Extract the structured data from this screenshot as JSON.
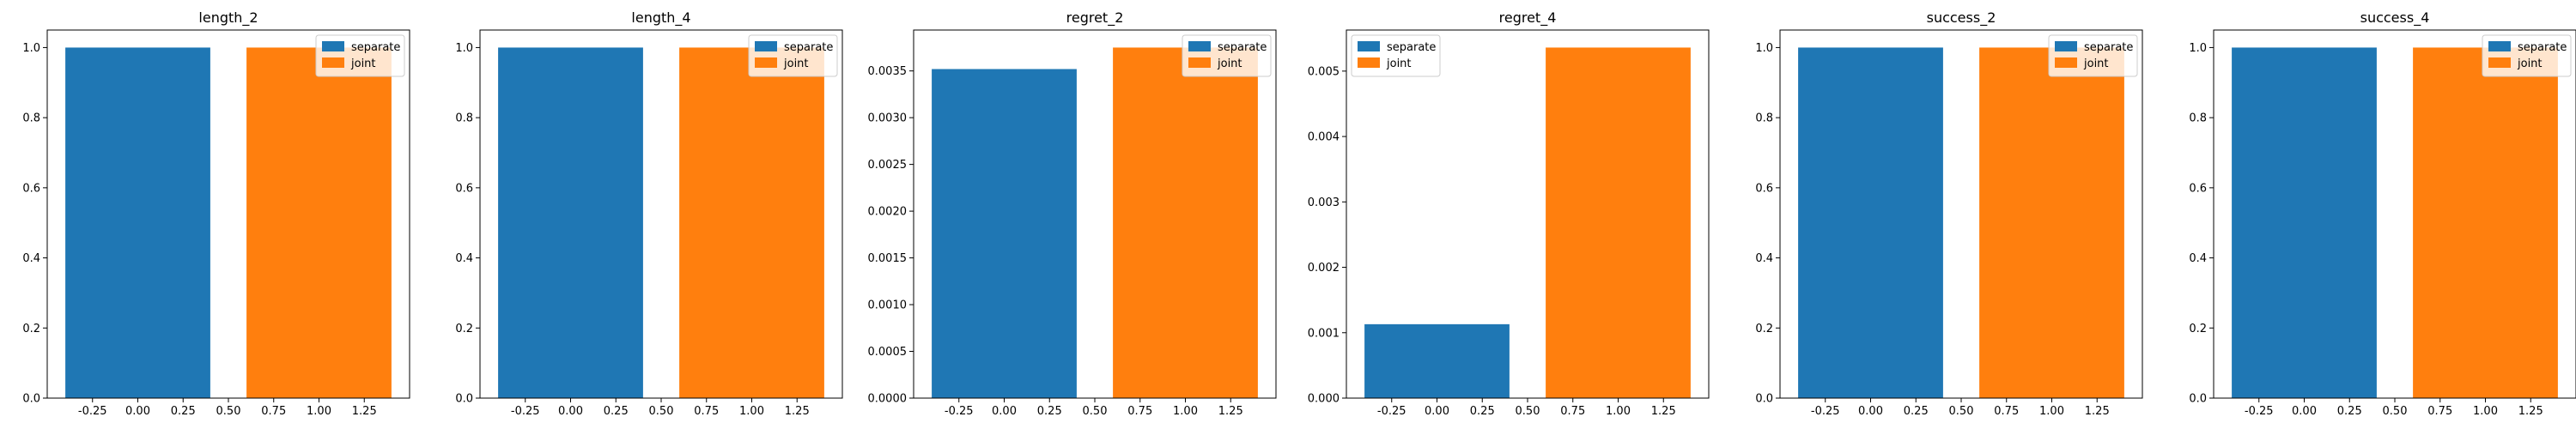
{
  "colors": {
    "separate": "#1f77b4",
    "joint": "#ff7f0e",
    "axis": "#000000"
  },
  "chart_data": [
    {
      "type": "bar",
      "title": "length_2",
      "categories": [
        0,
        1
      ],
      "series": [
        {
          "name": "separate",
          "x": 0,
          "value": 1.0
        },
        {
          "name": "joint",
          "x": 1,
          "value": 1.0
        }
      ],
      "xlim": [
        -0.5,
        1.5
      ],
      "ylim": [
        0,
        1.05
      ],
      "xticks": [
        "-0.25",
        "0.00",
        "0.25",
        "0.50",
        "0.75",
        "1.00",
        "1.25"
      ],
      "xtick_values": [
        -0.25,
        0.0,
        0.25,
        0.5,
        0.75,
        1.0,
        1.25
      ],
      "yticks": [
        "0.0",
        "0.2",
        "0.4",
        "0.6",
        "0.8",
        "1.0"
      ],
      "ytick_values": [
        0,
        0.2,
        0.4,
        0.6,
        0.8,
        1.0
      ],
      "legend": [
        "separate",
        "joint"
      ],
      "legend_position": "top-right"
    },
    {
      "type": "bar",
      "title": "length_4",
      "categories": [
        0,
        1
      ],
      "series": [
        {
          "name": "separate",
          "x": 0,
          "value": 1.0
        },
        {
          "name": "joint",
          "x": 1,
          "value": 1.0
        }
      ],
      "xlim": [
        -0.5,
        1.5
      ],
      "ylim": [
        0,
        1.05
      ],
      "xticks": [
        "-0.25",
        "0.00",
        "0.25",
        "0.50",
        "0.75",
        "1.00",
        "1.25"
      ],
      "xtick_values": [
        -0.25,
        0.0,
        0.25,
        0.5,
        0.75,
        1.0,
        1.25
      ],
      "yticks": [
        "0.0",
        "0.2",
        "0.4",
        "0.6",
        "0.8",
        "1.0"
      ],
      "ytick_values": [
        0,
        0.2,
        0.4,
        0.6,
        0.8,
        1.0
      ],
      "legend": [
        "separate",
        "joint"
      ],
      "legend_position": "top-right"
    },
    {
      "type": "bar",
      "title": "regret_2",
      "categories": [
        0,
        1
      ],
      "series": [
        {
          "name": "separate",
          "x": 0,
          "value": 0.00352
        },
        {
          "name": "joint",
          "x": 1,
          "value": 0.00375
        }
      ],
      "xlim": [
        -0.5,
        1.5
      ],
      "ylim": [
        0,
        0.0039375
      ],
      "xticks": [
        "-0.25",
        "0.00",
        "0.25",
        "0.50",
        "0.75",
        "1.00",
        "1.25"
      ],
      "xtick_values": [
        -0.25,
        0.0,
        0.25,
        0.5,
        0.75,
        1.0,
        1.25
      ],
      "yticks": [
        "0.0000",
        "0.0005",
        "0.0010",
        "0.0015",
        "0.0020",
        "0.0025",
        "0.0030",
        "0.0035"
      ],
      "ytick_values": [
        0,
        0.0005,
        0.001,
        0.0015,
        0.002,
        0.0025,
        0.003,
        0.0035
      ],
      "legend": [
        "separate",
        "joint"
      ],
      "legend_position": "top-right"
    },
    {
      "type": "bar",
      "title": "regret_4",
      "categories": [
        0,
        1
      ],
      "series": [
        {
          "name": "separate",
          "x": 0,
          "value": 0.00113
        },
        {
          "name": "joint",
          "x": 1,
          "value": 0.00536
        }
      ],
      "xlim": [
        -0.5,
        1.5
      ],
      "ylim": [
        0,
        0.005628
      ],
      "xticks": [
        "-0.25",
        "0.00",
        "0.25",
        "0.50",
        "0.75",
        "1.00",
        "1.25"
      ],
      "xtick_values": [
        -0.25,
        0.0,
        0.25,
        0.5,
        0.75,
        1.0,
        1.25
      ],
      "yticks": [
        "0.000",
        "0.001",
        "0.002",
        "0.003",
        "0.004",
        "0.005"
      ],
      "ytick_values": [
        0,
        0.001,
        0.002,
        0.003,
        0.004,
        0.005
      ],
      "legend": [
        "separate",
        "joint"
      ],
      "legend_position": "top-left"
    },
    {
      "type": "bar",
      "title": "success_2",
      "categories": [
        0,
        1
      ],
      "series": [
        {
          "name": "separate",
          "x": 0,
          "value": 1.0
        },
        {
          "name": "joint",
          "x": 1,
          "value": 1.0
        }
      ],
      "xlim": [
        -0.5,
        1.5
      ],
      "ylim": [
        0,
        1.05
      ],
      "xticks": [
        "-0.25",
        "0.00",
        "0.25",
        "0.50",
        "0.75",
        "1.00",
        "1.25"
      ],
      "xtick_values": [
        -0.25,
        0.0,
        0.25,
        0.5,
        0.75,
        1.0,
        1.25
      ],
      "yticks": [
        "0.0",
        "0.2",
        "0.4",
        "0.6",
        "0.8",
        "1.0"
      ],
      "ytick_values": [
        0,
        0.2,
        0.4,
        0.6,
        0.8,
        1.0
      ],
      "legend": [
        "separate",
        "joint"
      ],
      "legend_position": "top-right"
    },
    {
      "type": "bar",
      "title": "success_4",
      "categories": [
        0,
        1
      ],
      "series": [
        {
          "name": "separate",
          "x": 0,
          "value": 1.0
        },
        {
          "name": "joint",
          "x": 1,
          "value": 1.0
        }
      ],
      "xlim": [
        -0.5,
        1.5
      ],
      "ylim": [
        0,
        1.05
      ],
      "xticks": [
        "-0.25",
        "0.00",
        "0.25",
        "0.50",
        "0.75",
        "1.00",
        "1.25"
      ],
      "xtick_values": [
        -0.25,
        0.0,
        0.25,
        0.5,
        0.75,
        1.0,
        1.25
      ],
      "yticks": [
        "0.0",
        "0.2",
        "0.4",
        "0.6",
        "0.8",
        "1.0"
      ],
      "ytick_values": [
        0,
        0.2,
        0.4,
        0.6,
        0.8,
        1.0
      ],
      "legend": [
        "separate",
        "joint"
      ],
      "legend_position": "top-right"
    }
  ]
}
